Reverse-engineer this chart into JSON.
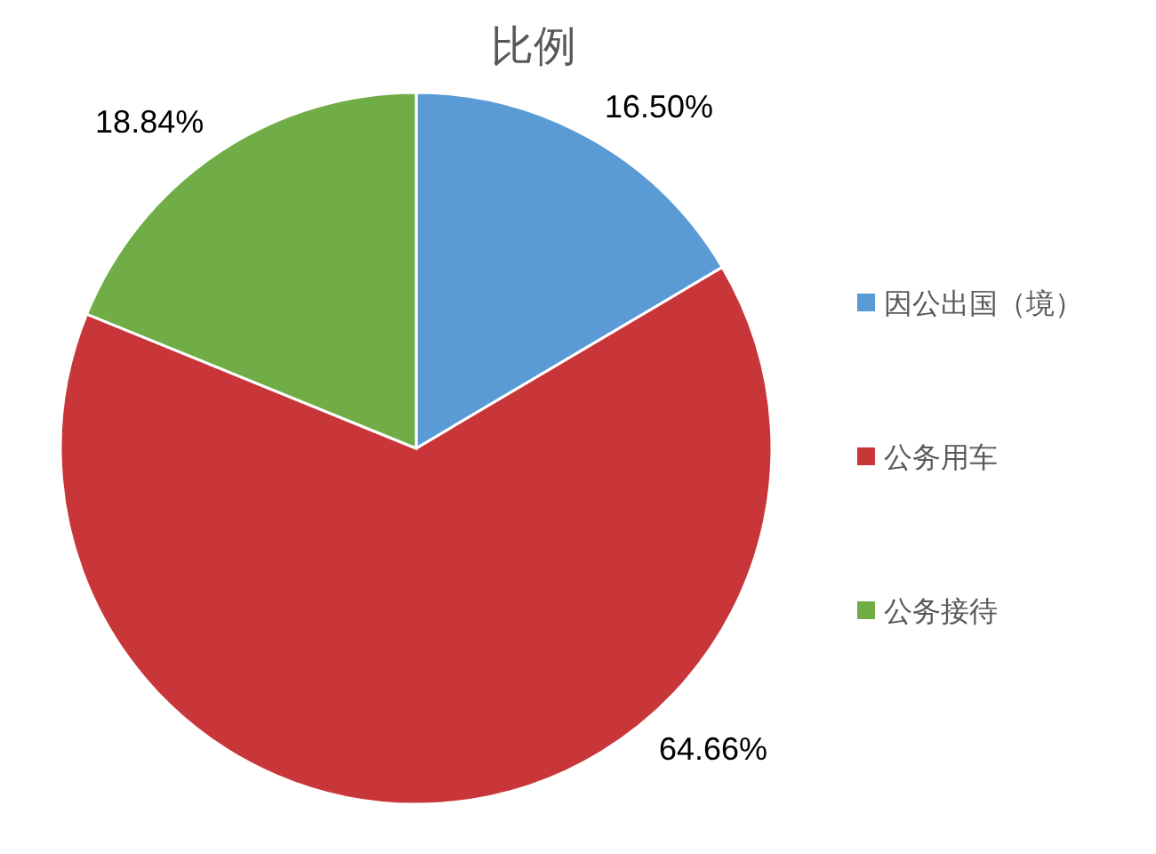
{
  "chart_data": {
    "type": "pie",
    "title": "比例",
    "categories": [
      "因公出国（境）",
      "公务用车",
      "公务接待"
    ],
    "values": [
      16.5,
      64.66,
      18.84
    ],
    "value_labels": [
      "16.50%",
      "64.66%",
      "18.84%"
    ],
    "colors": [
      "#5b9bd5",
      "#c9363a",
      "#70ad47"
    ],
    "legend": "right"
  }
}
